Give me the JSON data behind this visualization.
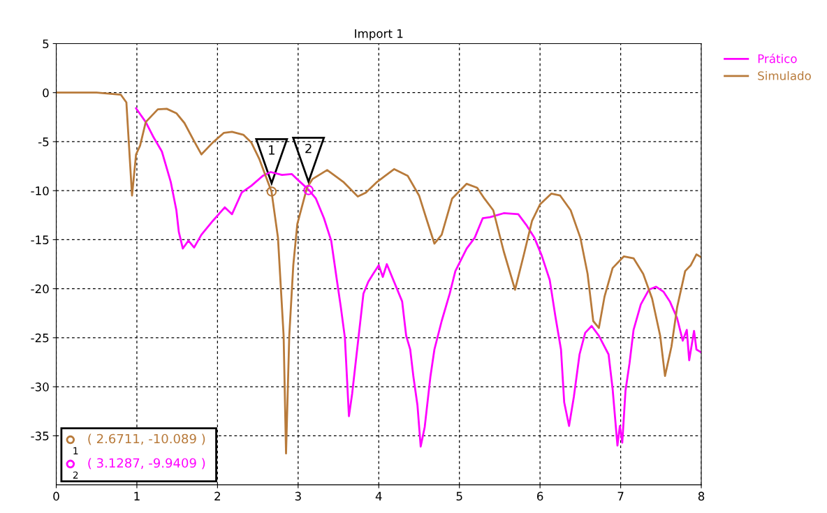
{
  "chart_data": {
    "type": "line",
    "title": "Import 1",
    "xlim": [
      0,
      8
    ],
    "xticks": [
      0,
      1,
      2,
      3,
      4,
      5,
      6,
      7,
      8
    ],
    "ylim": [
      -40,
      5
    ],
    "yticks": [
      5,
      0,
      -5,
      -10,
      -15,
      -20,
      -25,
      -30,
      -35
    ],
    "grid": true,
    "legend": "top right",
    "marker": "none",
    "line_style": "solid",
    "series": [
      {
        "name": "Prático",
        "color": "#ff00ff",
        "x": [
          0.99,
          1.11,
          1.21,
          1.31,
          1.42,
          1.49,
          1.52,
          1.57,
          1.64,
          1.71,
          1.8,
          1.94,
          2.09,
          2.18,
          2.3,
          2.42,
          2.56,
          2.66,
          2.8,
          2.92,
          3.01,
          3.13,
          3.22,
          3.32,
          3.41,
          3.48,
          3.53,
          3.58,
          3.63,
          3.67,
          3.74,
          3.81,
          3.87,
          3.93,
          4.0,
          4.05,
          4.1,
          4.19,
          4.29,
          4.34,
          4.39,
          4.43,
          4.48,
          4.52,
          4.57,
          4.64,
          4.69,
          4.78,
          4.88,
          4.95,
          5.09,
          5.19,
          5.29,
          5.38,
          5.55,
          5.73,
          5.83,
          5.93,
          6.02,
          6.12,
          6.19,
          6.26,
          6.3,
          6.36,
          6.42,
          6.49,
          6.56,
          6.64,
          6.73,
          6.85,
          6.9,
          6.96,
          6.99,
          7.02,
          7.06,
          7.11,
          7.16,
          7.25,
          7.35,
          7.44,
          7.53,
          7.61,
          7.7,
          7.77,
          7.82,
          7.85,
          7.91,
          7.94,
          8.0
        ],
        "values": [
          -1.6,
          -3,
          -4.6,
          -6,
          -9.1,
          -12,
          -14.2,
          -15.9,
          -15.1,
          -15.8,
          -14.5,
          -13.1,
          -11.7,
          -12.4,
          -10.2,
          -9.5,
          -8.5,
          -8.1,
          -8.4,
          -8.3,
          -9,
          -9.9,
          -10.8,
          -12.8,
          -15.1,
          -19.1,
          -21.9,
          -25,
          -33,
          -30.7,
          -25.6,
          -20.5,
          -19.3,
          -18.5,
          -17.6,
          -18.8,
          -17.5,
          -19.3,
          -21.3,
          -24.8,
          -26.2,
          -29,
          -31.9,
          -36.1,
          -34.1,
          -29,
          -26.2,
          -23.3,
          -20.5,
          -18.2,
          -15.9,
          -14.8,
          -12.8,
          -12.7,
          -12.3,
          -12.4,
          -13.5,
          -14.8,
          -16.6,
          -19.1,
          -22.8,
          -26.2,
          -31.6,
          -34,
          -31,
          -26.7,
          -24.5,
          -23.8,
          -24.8,
          -26.7,
          -30.2,
          -36,
          -34,
          -35.7,
          -30.4,
          -27.6,
          -24.2,
          -21.6,
          -20.1,
          -19.8,
          -20.3,
          -21.3,
          -23,
          -25.3,
          -24.2,
          -27.3,
          -24.3,
          -26.2,
          -26.5
        ]
      },
      {
        "name": "Simulado",
        "color": "#b87a3a",
        "x": [
          0.0,
          0.5,
          0.8,
          0.87,
          0.94,
          0.99,
          1.04,
          1.11,
          1.26,
          1.37,
          1.49,
          1.59,
          1.7,
          1.8,
          1.94,
          2.08,
          2.18,
          2.32,
          2.42,
          2.52,
          2.67,
          2.75,
          2.82,
          2.85,
          2.89,
          2.94,
          2.99,
          3.11,
          3.18,
          3.36,
          3.56,
          3.74,
          3.84,
          3.98,
          4.19,
          4.36,
          4.5,
          4.6,
          4.69,
          4.78,
          4.91,
          5.09,
          5.22,
          5.31,
          5.42,
          5.55,
          5.69,
          5.8,
          5.9,
          6.0,
          6.14,
          6.25,
          6.38,
          6.5,
          6.59,
          6.66,
          6.73,
          6.8,
          6.9,
          7.04,
          7.16,
          7.28,
          7.39,
          7.49,
          7.55,
          7.63,
          7.7,
          7.8,
          7.87,
          7.94,
          8.0
        ],
        "values": [
          0,
          0,
          -0.2,
          -1,
          -10.5,
          -6.3,
          -5.4,
          -3,
          -1.7,
          -1.65,
          -2.1,
          -3.1,
          -4.8,
          -6.3,
          -5.1,
          -4.1,
          -4.0,
          -4.3,
          -5.1,
          -6.8,
          -10.1,
          -14.8,
          -24.8,
          -36.8,
          -24.8,
          -17.6,
          -13.4,
          -9.7,
          -8.8,
          -7.9,
          -9.1,
          -10.6,
          -10.2,
          -9.1,
          -7.8,
          -8.5,
          -10.5,
          -13.1,
          -15.4,
          -14.5,
          -10.8,
          -9.3,
          -9.7,
          -10.8,
          -12,
          -16.2,
          -20.1,
          -16.5,
          -13.1,
          -11.4,
          -10.3,
          -10.5,
          -12,
          -14.8,
          -18.5,
          -23.3,
          -24,
          -20.8,
          -17.9,
          -16.7,
          -16.9,
          -18.5,
          -21,
          -24.8,
          -28.9,
          -25.9,
          -21.9,
          -18.2,
          -17.6,
          -16.5,
          -16.8
        ]
      }
    ],
    "annotations": [
      {
        "text": "1",
        "x": 2.6711,
        "y": -10.089
      },
      {
        "text": "2",
        "x": 3.1287,
        "y": -9.9409
      },
      "( 2.6711, -10.089 )",
      "( 3.1287, -9.9409 )"
    ]
  }
}
